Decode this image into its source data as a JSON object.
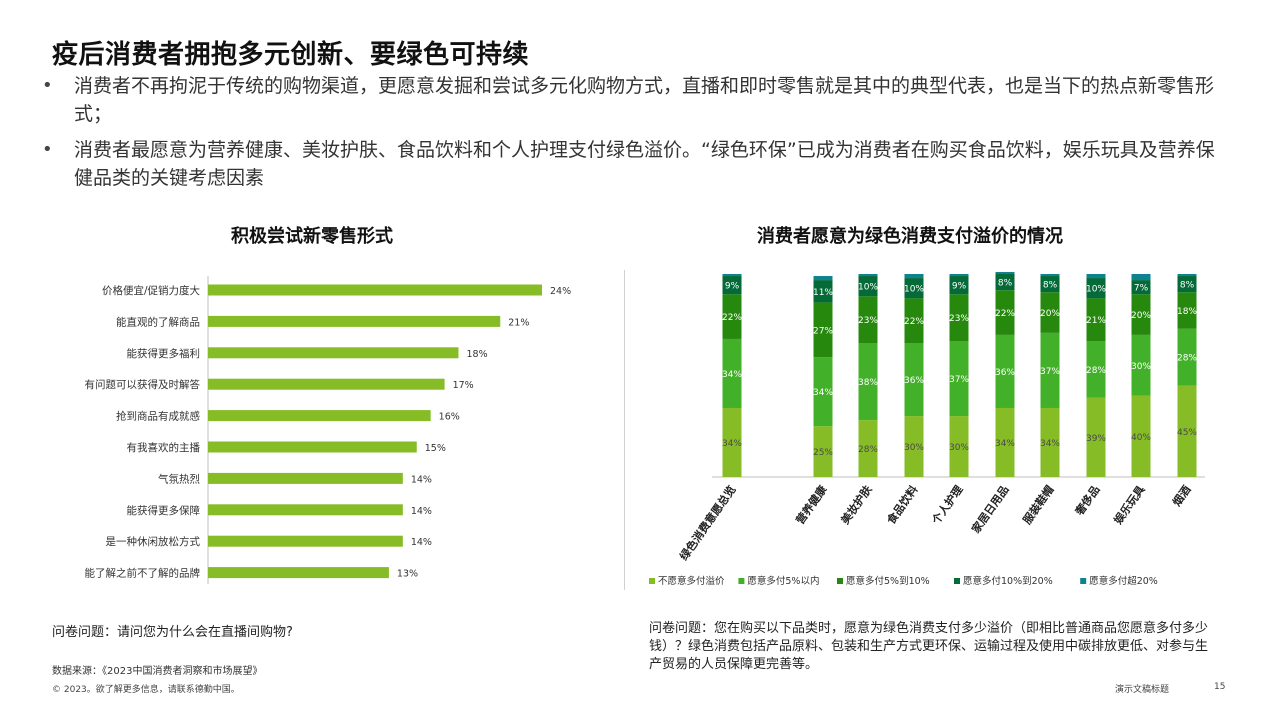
{
  "title": "疫后消费者拥抱多元创新、要绿色可持续",
  "bullets": [
    "消费者不再拘泥于传统的购物渠道，更愿意发掘和尝试多元化购物方式，直播和即时零售就是其中的典型代表，也是当下的热点新零售形式；",
    "消费者最愿意为营养健康、美妆护肤、食品饮料和个人护理支付绿色溢价。“绿色环保”已成为消费者在购买食品饮料，娱乐玩具及营养保健品类的关键考虑因素"
  ],
  "bullet_symbol": "•",
  "left_chart_title": "积极尝试新零售形式",
  "right_chart_title": "消费者愿意为绿色消费支付溢价的情况",
  "left_question": "问卷问题：请问您为什么会在直播间购物?",
  "right_question": "问卷问题：您在购买以下品类时，愿意为绿色消费支付多少溢价（即相比普通商品您愿意多付多少钱）？绿色消费包括产品原料、包装和生产方式更环保、运输过程及使用中碳排放更低、对参与生产贸易的人员保障更完善等。",
  "source": "数据来源：《2023中国消费者洞察和市场展望》",
  "copyright": "© 2023。欲了解更多信息，请联系德勤中国。",
  "footer_title": "演示文稿标题",
  "page_number": "15",
  "chart_data": [
    {
      "type": "bar",
      "orientation": "horizontal",
      "title": "积极尝试新零售形式",
      "categories": [
        "价格便宜/促销力度大",
        "能直观的了解商品",
        "能获得更多福利",
        "有问题可以获得及时解答",
        "抢到商品有成就感",
        "有我喜欢的主播",
        "气氛热烈",
        "能获得更多保障",
        "是一种休闲放松方式",
        "能了解之前不了解的品牌"
      ],
      "values": [
        24,
        21,
        18,
        17,
        16,
        15,
        14,
        14,
        14,
        13
      ],
      "value_labels": [
        "24%",
        "21%",
        "18%",
        "17%",
        "16%",
        "15%",
        "14%",
        "14%",
        "14%",
        "13%"
      ],
      "unit": "%",
      "color": "#86bc25",
      "xlim": [
        0,
        27
      ]
    },
    {
      "type": "bar",
      "stacked": true,
      "title": "消费者愿意为绿色消费支付溢价的情况",
      "categories": [
        "绿色消费意愿总览",
        "营养健康",
        "美妆护肤",
        "食品饮料",
        "个人护理",
        "家居日用品",
        "服装鞋帽",
        "奢侈品",
        "娱乐玩具",
        "烟酒"
      ],
      "series": [
        {
          "name": "不愿意多付溢价",
          "color": "#86bc25",
          "values": [
            34,
            25,
            28,
            30,
            30,
            34,
            34,
            39,
            40,
            45
          ],
          "labels": [
            "34%",
            "25%",
            "28%",
            "30%",
            "30%",
            "34%",
            "34%",
            "39%",
            "40%",
            "45%"
          ]
        },
        {
          "name": "愿意多付5%以内",
          "color": "#43b02a",
          "values": [
            34,
            34,
            38,
            36,
            37,
            36,
            37,
            28,
            30,
            28
          ],
          "labels": [
            "34%",
            "34%",
            "38%",
            "36%",
            "37%",
            "36%",
            "37%",
            "28%",
            "30%",
            "28%"
          ]
        },
        {
          "name": "愿意多付5%到10%",
          "color": "#26890d",
          "values": [
            22,
            27,
            23,
            22,
            23,
            22,
            20,
            21,
            20,
            18
          ],
          "labels": [
            "22%",
            "27%",
            "23%",
            "22%",
            "23%",
            "22%",
            "20%",
            "21%",
            "20%",
            "18%"
          ]
        },
        {
          "name": "愿意多付10%到20%",
          "color": "#046a38",
          "values": [
            9,
            11,
            10,
            10,
            9,
            8,
            8,
            10,
            7,
            8
          ],
          "labels": [
            "9%",
            "11%",
            "10%",
            "10%",
            "9%",
            "8%",
            "8%",
            "10%",
            "7%",
            "8%"
          ]
        },
        {
          "name": "愿意多付超20%",
          "color": "#0d8390",
          "values": [
            1,
            2,
            1,
            2,
            1,
            1,
            1,
            2,
            3,
            1
          ],
          "labels": [
            "",
            "",
            "",
            "",
            "",
            "",
            "",
            "",
            "",
            ""
          ]
        }
      ],
      "ylim": [
        0,
        100
      ],
      "legend": "bottom"
    }
  ]
}
